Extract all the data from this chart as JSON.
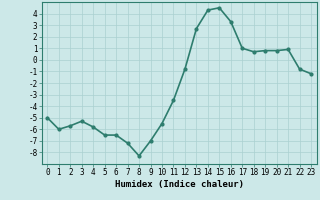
{
  "x": [
    0,
    1,
    2,
    3,
    4,
    5,
    6,
    7,
    8,
    9,
    10,
    11,
    12,
    13,
    14,
    15,
    16,
    17,
    18,
    19,
    20,
    21,
    22,
    23
  ],
  "y": [
    -5.0,
    -6.0,
    -5.7,
    -5.3,
    -5.8,
    -6.5,
    -6.5,
    -7.2,
    -8.3,
    -7.0,
    -5.5,
    -3.5,
    -0.8,
    2.7,
    4.3,
    4.5,
    3.3,
    1.0,
    0.7,
    0.8,
    0.8,
    0.9,
    -0.8,
    -1.2
  ],
  "line_color": "#2e7d6e",
  "marker": "o",
  "markersize": 2.0,
  "linewidth": 1.2,
  "bg_color": "#cce8e8",
  "grid_color": "#aad0d0",
  "xlabel": "Humidex (Indice chaleur)",
  "xlim": [
    -0.5,
    23.5
  ],
  "ylim": [
    -9,
    5
  ],
  "yticks": [
    -8,
    -7,
    -6,
    -5,
    -4,
    -3,
    -2,
    -1,
    0,
    1,
    2,
    3,
    4
  ],
  "xticks": [
    0,
    1,
    2,
    3,
    4,
    5,
    6,
    7,
    8,
    9,
    10,
    11,
    12,
    13,
    14,
    15,
    16,
    17,
    18,
    19,
    20,
    21,
    22,
    23
  ],
  "xlabel_fontsize": 6.5,
  "tick_fontsize": 5.5
}
